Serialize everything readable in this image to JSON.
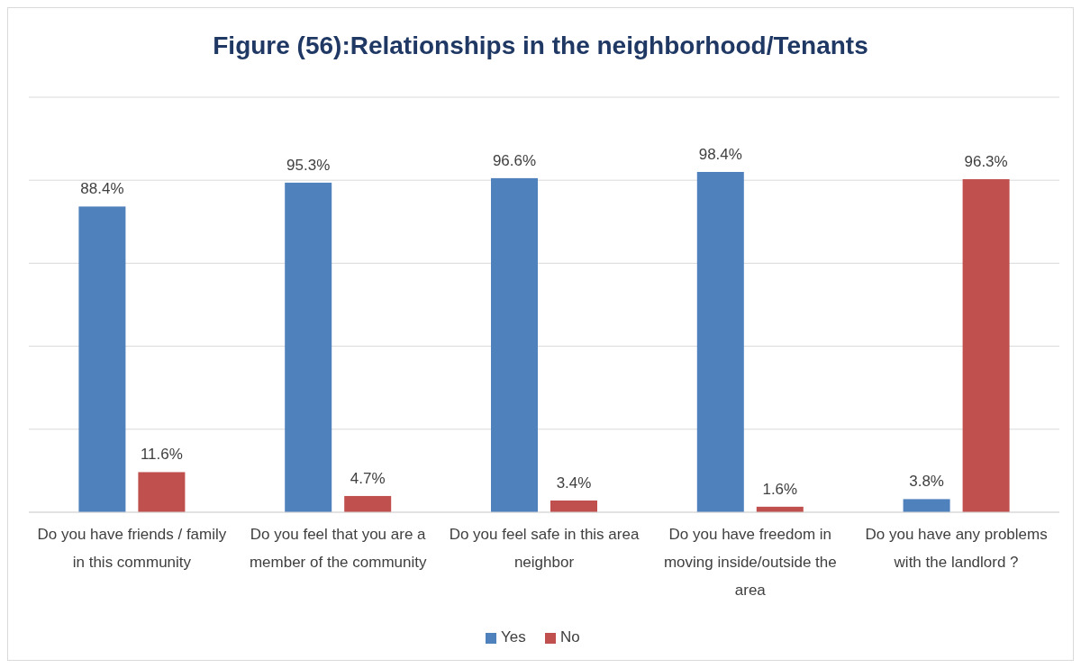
{
  "chart_data": {
    "type": "bar",
    "title": "Figure (56):Relationships in the neighborhood/Tenants",
    "categories": [
      "Do you have friends / family in this community",
      "Do you feel that you are a member of the community",
      "Do you feel safe in this area neighbor",
      "Do you have freedom in moving inside/outside the area",
      "Do you have any problems with the landlord ?"
    ],
    "series": [
      {
        "name": "Yes",
        "color": "#4f81bd",
        "values": [
          88.4,
          95.3,
          96.6,
          98.4,
          3.8
        ],
        "value_labels": [
          "88.4%",
          "95.3%",
          "96.6%",
          "98.4%",
          "3.8%"
        ]
      },
      {
        "name": "No",
        "color": "#c0504d",
        "values": [
          11.6,
          4.7,
          3.4,
          1.6,
          96.3
        ],
        "value_labels": [
          "11.6%",
          "4.7%",
          "3.4%",
          "1.6%",
          "96.3%"
        ]
      }
    ],
    "grid": "y",
    "legend": "bottom"
  }
}
